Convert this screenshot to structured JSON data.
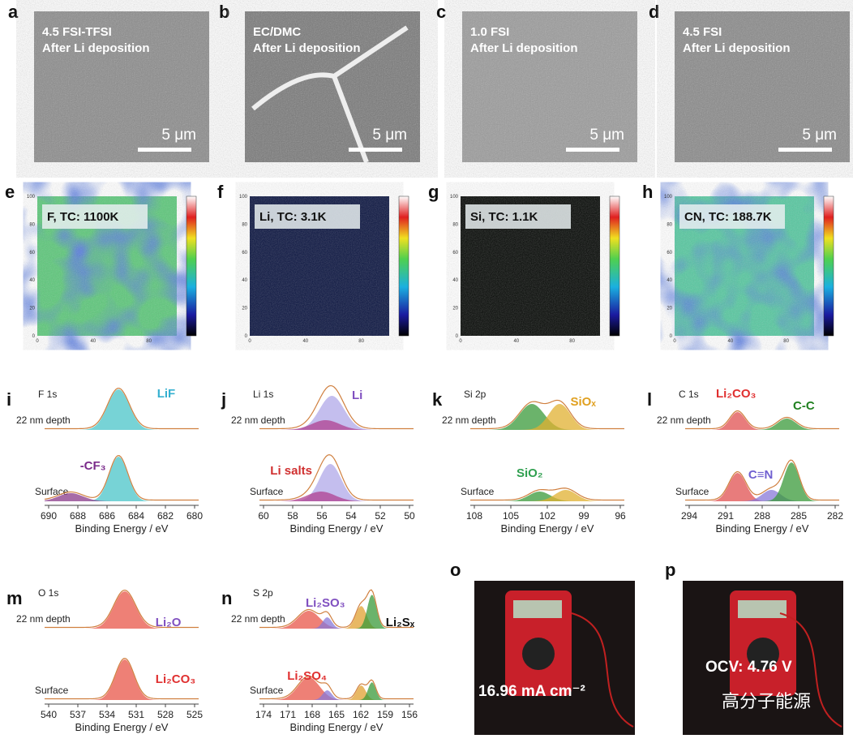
{
  "panels": [
    {
      "letter": "a",
      "lines": [
        "4.5 FSI-TFSI",
        "After Li deposition"
      ],
      "scale": "5 μm"
    },
    {
      "letter": "b",
      "lines": [
        "EC/DMC",
        "After Li deposition"
      ],
      "scale": "5 μm"
    },
    {
      "letter": "c",
      "lines": [
        "1.0 FSI",
        "After Li deposition"
      ],
      "scale": "5 μm"
    },
    {
      "letter": "d",
      "lines": [
        "4.5 FSI",
        "After Li deposition"
      ],
      "scale": "5 μm"
    }
  ],
  "maps": [
    {
      "letter": "e",
      "label": "F, TC: 1100K"
    },
    {
      "letter": "f",
      "label": "Li, TC: 3.1K"
    },
    {
      "letter": "g",
      "label": "Si, TC: 1.1K"
    },
    {
      "letter": "h",
      "label": "CN, TC: 188.7K"
    }
  ],
  "map_axis": {
    "x": [
      "0",
      "40",
      "80"
    ],
    "y": [
      "100",
      "80",
      "60",
      "40",
      "20",
      "0"
    ]
  },
  "spectra": [
    {
      "letter": "i",
      "core": "F 1s",
      "depth": "22 nm depth",
      "surface": "Surface",
      "labels": [
        "LiF",
        "-CF₃"
      ],
      "xticks": [
        "690",
        "688",
        "686",
        "684",
        "682",
        "680"
      ],
      "xlabel": "Binding Energy / eV"
    },
    {
      "letter": "j",
      "core": "Li 1s",
      "depth": "22 nm depth",
      "surface": "Surface",
      "labels": [
        "Li",
        "Li salts"
      ],
      "xticks": [
        "60",
        "58",
        "56",
        "54",
        "52",
        "50"
      ],
      "xlabel": "Binding Energy / eV"
    },
    {
      "letter": "k",
      "core": "Si 2p",
      "depth": "22 nm depth",
      "surface": "Surface",
      "labels": [
        "SiOₓ",
        "SiO₂"
      ],
      "xticks": [
        "108",
        "105",
        "102",
        "99",
        "96"
      ],
      "xlabel": "Binding Energy / eV"
    },
    {
      "letter": "l",
      "core": "C 1s",
      "depth": "22 nm depth",
      "surface": "Surface",
      "labels": [
        "Li₂CO₃",
        "C-C",
        "C≡N"
      ],
      "xticks": [
        "294",
        "291",
        "288",
        "285",
        "282"
      ],
      "xlabel": "Binding Energy / eV"
    },
    {
      "letter": "m",
      "core": "O 1s",
      "depth": "22 nm depth",
      "surface": "Surface",
      "labels": [
        "Li₂O",
        "Li₂CO₃"
      ],
      "xticks": [
        "540",
        "537",
        "534",
        "531",
        "528",
        "525"
      ],
      "xlabel": "Binding Energy / eV"
    },
    {
      "letter": "n",
      "core": "S 2p",
      "depth": "22 nm depth",
      "surface": "Surface",
      "labels": [
        "Li₂SO₃",
        "Li₂Sₓ",
        "Li₂SO₄"
      ],
      "xticks": [
        "174",
        "171",
        "168",
        "165",
        "162",
        "159",
        "156"
      ],
      "xlabel": "Binding Energy / eV"
    }
  ],
  "photos": [
    {
      "letter": "o",
      "label": "16.96 mA cm⁻²"
    },
    {
      "letter": "p",
      "label": "OCV: 4.76 V"
    }
  ],
  "watermark": "高分子能源"
}
